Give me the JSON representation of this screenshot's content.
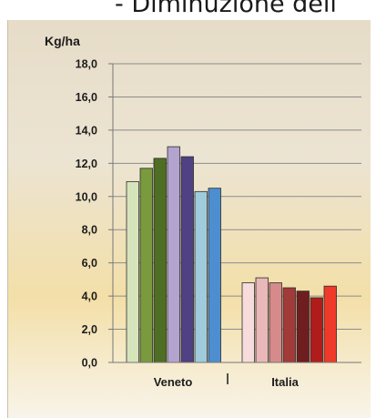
{
  "header": {
    "text": "- Diminuzione dell"
  },
  "chart_data": {
    "type": "bar",
    "ylabel": "Kg/ha",
    "ylim": [
      0,
      18
    ],
    "yticks": [
      "0,0",
      "2,0",
      "4,0",
      "6,0",
      "8,0",
      "10,0",
      "12,0",
      "14,0",
      "16,0",
      "18,0"
    ],
    "grid": true,
    "groups": [
      {
        "name": "Veneto",
        "values": [
          10.9,
          11.7,
          12.3,
          13.0,
          12.4,
          10.3,
          10.5
        ],
        "colors": [
          "#d6e4bc",
          "#7a9a3e",
          "#4e6e24",
          "#b3a3cf",
          "#4f4183",
          "#9fcbdc",
          "#4c8ed0"
        ]
      },
      {
        "name": "Italia",
        "values": [
          4.8,
          5.1,
          4.8,
          4.5,
          4.3,
          3.9,
          4.6
        ],
        "colors": [
          "#f6dcdc",
          "#e9b8b8",
          "#d78a8a",
          "#a33a3a",
          "#6e1e1e",
          "#b01c1c",
          "#ef3a2a"
        ]
      }
    ]
  }
}
